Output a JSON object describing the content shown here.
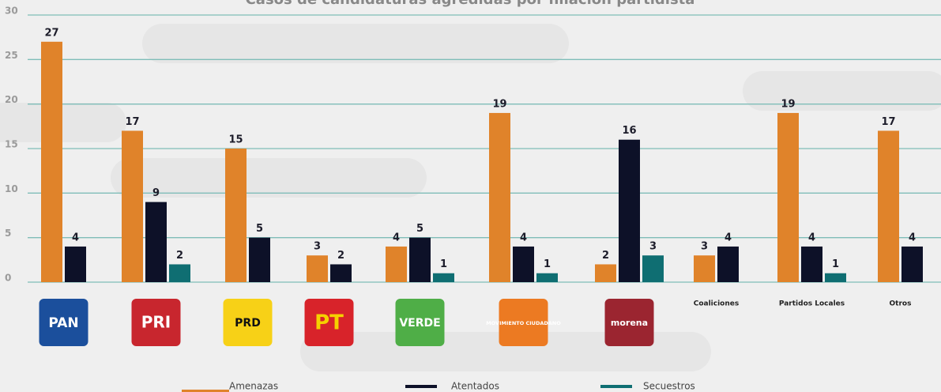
{
  "chart_data": {
    "type": "bar",
    "title": "Casos de candidaturas agredidas por filiación partidista",
    "categories": [
      "PAN",
      "PRI",
      "PRD",
      "PT",
      "VERDE",
      "MOVIMIENTO CIUDADANO",
      "morena",
      "Coaliciones",
      "Partidos Locales",
      "Otros"
    ],
    "series": [
      {
        "name": "Amenazas",
        "color": "#e0832a",
        "values": [
          27,
          17,
          15,
          3,
          4,
          19,
          2,
          3,
          19,
          17
        ]
      },
      {
        "name": "Atentados",
        "color": "#0d1128",
        "values": [
          4,
          9,
          5,
          2,
          5,
          4,
          16,
          4,
          4,
          4
        ]
      },
      {
        "name": "Secuestros",
        "color": "#0f6e72",
        "values": [
          null,
          2,
          null,
          null,
          1,
          1,
          3,
          null,
          1,
          null
        ]
      }
    ],
    "ylim": [
      0,
      30
    ],
    "yticks": [
      0,
      5,
      10,
      15,
      20,
      25,
      30
    ],
    "grid": true
  }
}
